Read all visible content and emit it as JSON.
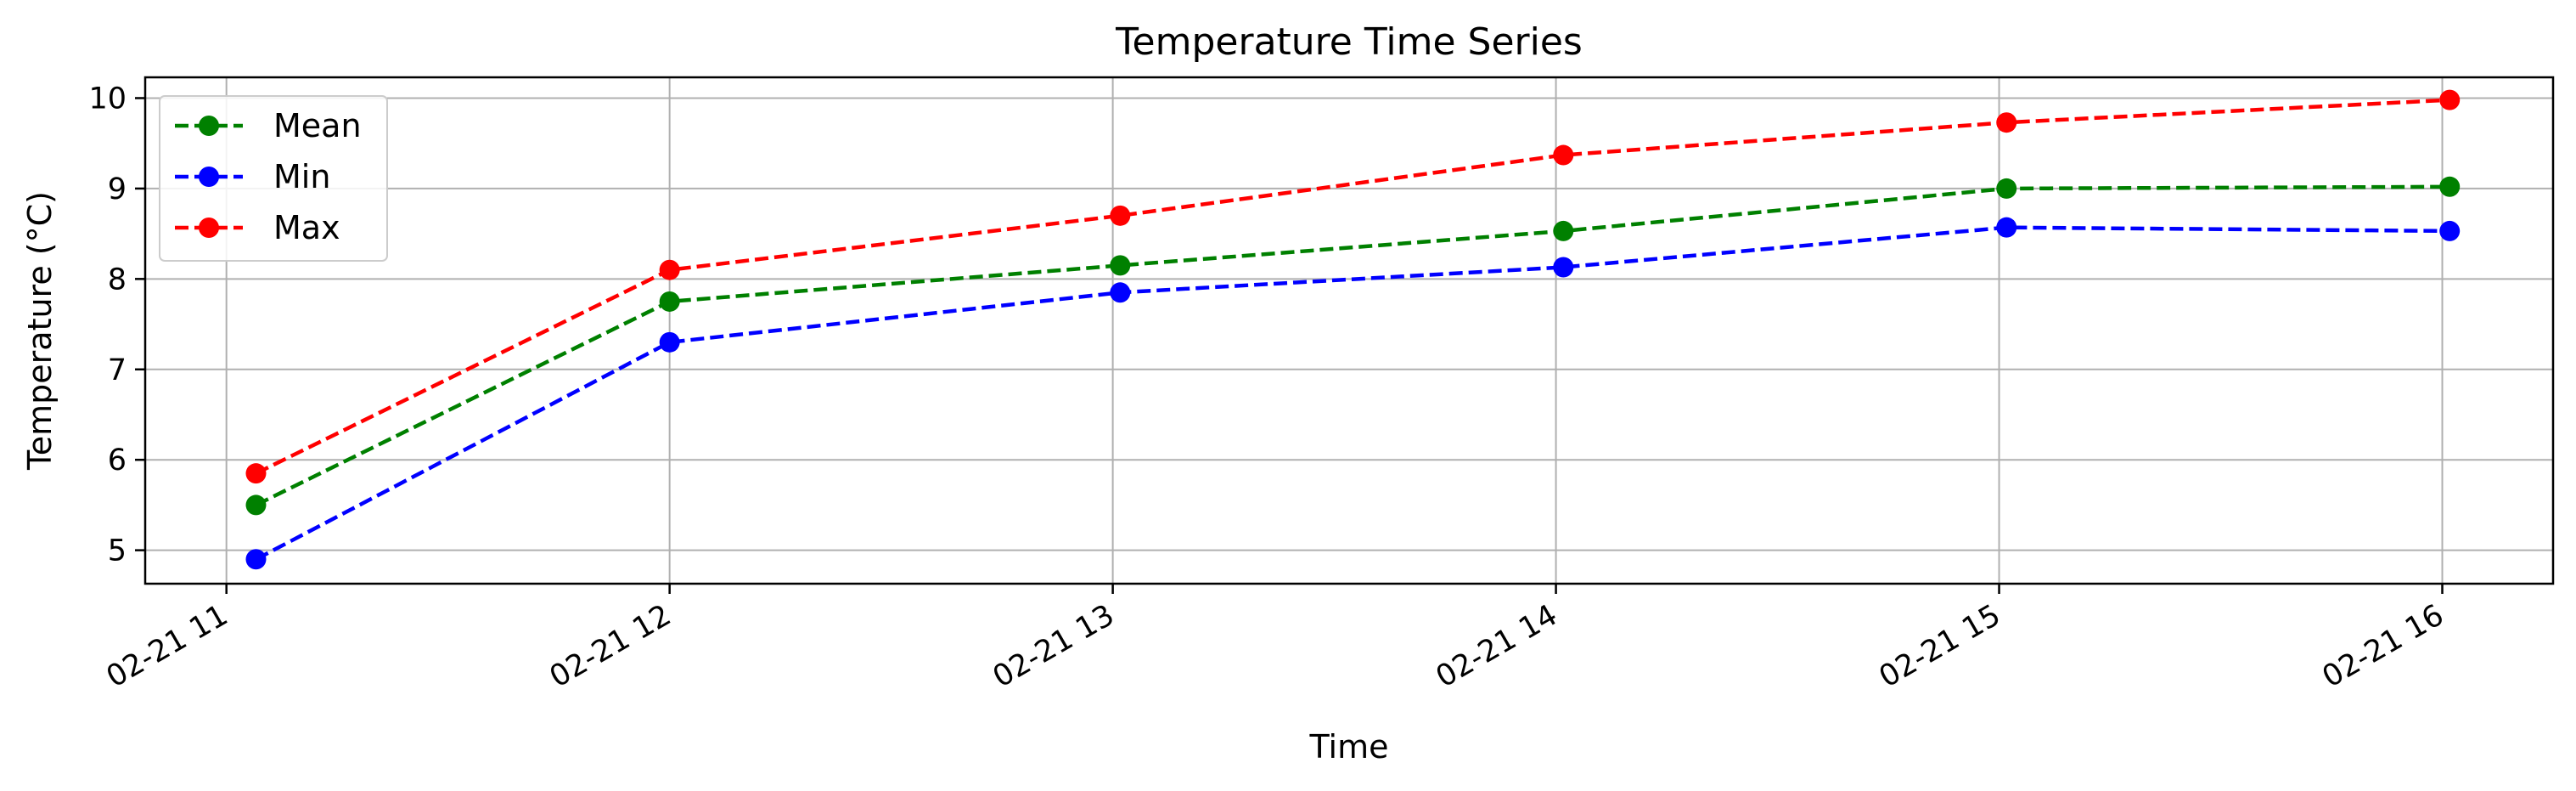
{
  "chart_data": {
    "type": "line",
    "title": "Temperature Time Series",
    "xlabel": "Time",
    "ylabel": "Temperature (°C)",
    "x": [
      "02-21 11:04",
      "02-21 12:00",
      "02-21 13:01",
      "02-21 14:01",
      "02-21 15:01",
      "02-21 16:01"
    ],
    "x_ticks": [
      "02-21 11",
      "02-21 12",
      "02-21 13",
      "02-21 14",
      "02-21 15",
      "02-21 16"
    ],
    "xlim": [
      "02-21 10:49",
      "02-21 16:15"
    ],
    "y_ticks": [
      5,
      6,
      7,
      8,
      9,
      10
    ],
    "ylim": [
      4.63,
      10.23
    ],
    "grid": true,
    "legend_position": "upper-left",
    "series": [
      {
        "name": "Mean",
        "color": "#008000",
        "values": [
          5.5,
          7.75,
          8.15,
          8.53,
          9.0,
          9.02
        ]
      },
      {
        "name": "Min",
        "color": "#0000ff",
        "values": [
          4.9,
          7.3,
          7.85,
          8.13,
          8.57,
          8.53
        ]
      },
      {
        "name": "Max",
        "color": "#ff0000",
        "values": [
          5.85,
          8.1,
          8.7,
          9.37,
          9.73,
          9.98
        ]
      }
    ]
  }
}
